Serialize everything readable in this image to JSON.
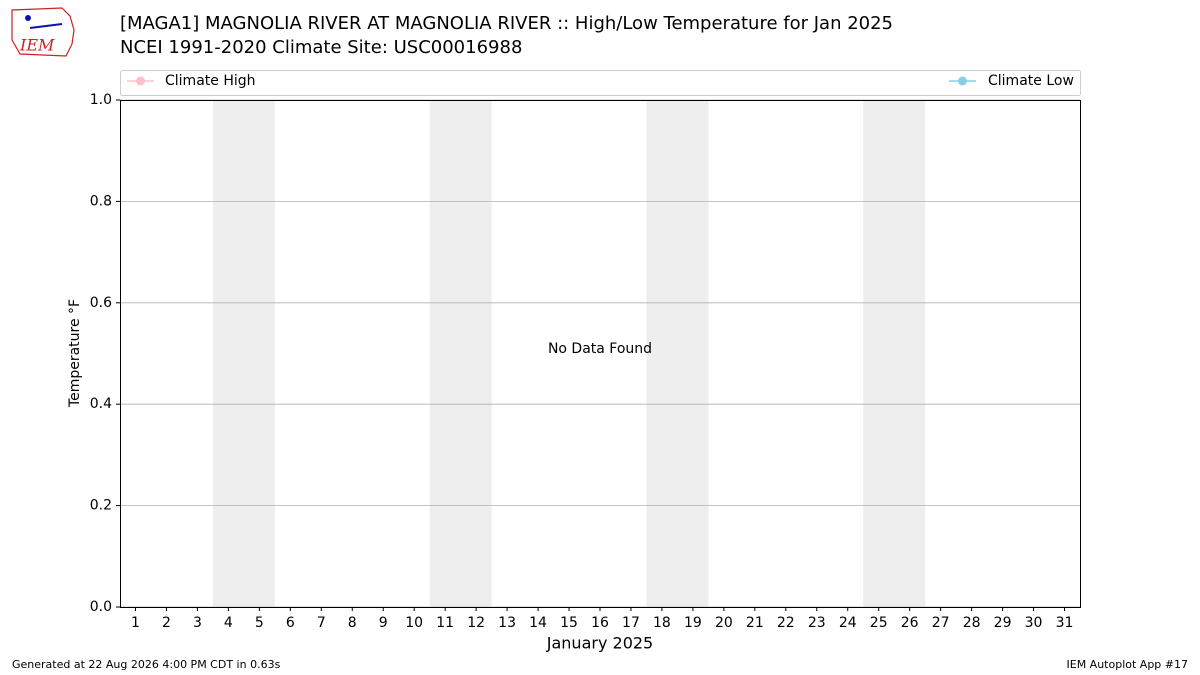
{
  "chart_data": {
    "type": "line",
    "title": "[MAGA1] MAGNOLIA RIVER  AT MAGNOLIA RIVER :: High/Low Temperature for Jan 2025",
    "subtitle": "NCEI 1991-2020 Climate Site: USC00016988",
    "x_label": "January 2025",
    "y_label": "Temperature °F",
    "annotation": "No Data Found",
    "x": [],
    "series": [
      {
        "name": "Climate High",
        "color": "#ffc0cb",
        "values": []
      },
      {
        "name": "Climate Low",
        "color": "#87ceeb",
        "values": []
      }
    ],
    "xlim": [
      0.5,
      31.5
    ],
    "xticks": [
      1,
      2,
      3,
      4,
      5,
      6,
      7,
      8,
      9,
      10,
      11,
      12,
      13,
      14,
      15,
      16,
      17,
      18,
      19,
      20,
      21,
      22,
      23,
      24,
      25,
      26,
      27,
      28,
      29,
      30,
      31
    ],
    "ylim": [
      0,
      1
    ],
    "yticks": [
      {
        "value": 0,
        "label": "0.0"
      },
      0.2,
      0.4,
      0.6,
      0.8,
      {
        "value": 1,
        "label": "1.0"
      }
    ],
    "shaded_bands": [
      [
        3.5,
        5.5
      ],
      [
        10.5,
        12.5
      ],
      [
        17.5,
        19.5
      ],
      [
        24.5,
        26.5
      ]
    ],
    "shade_color": "#eeeeee",
    "grid": true
  },
  "logo": "IEM",
  "footer": {
    "left": "Generated at 22 Aug 2026 4:00 PM CDT in 0.63s",
    "right": "IEM Autoplot App #17"
  }
}
